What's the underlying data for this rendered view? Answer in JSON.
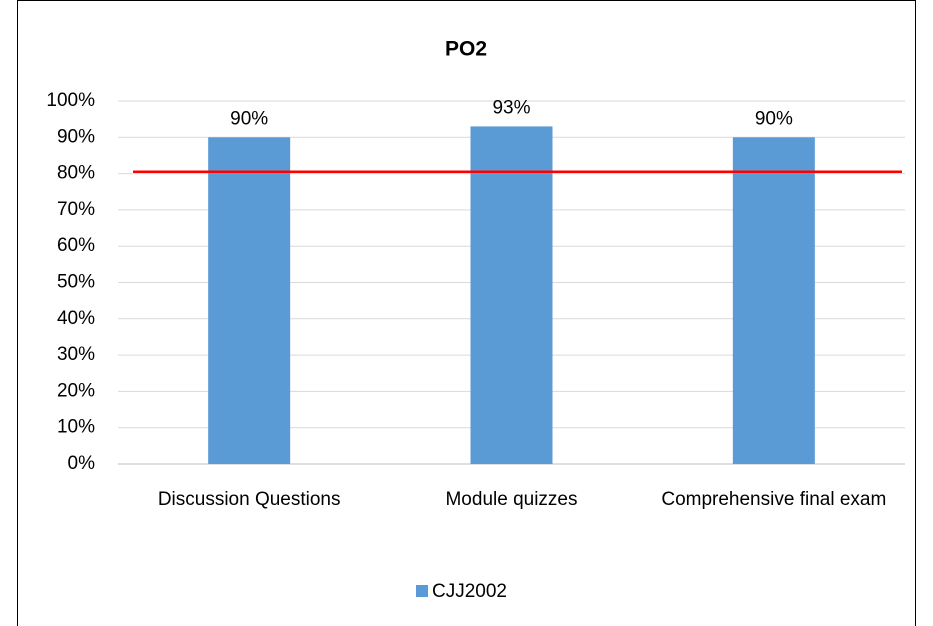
{
  "chart_data": {
    "type": "bar",
    "title": "PO2",
    "categories": [
      "Discussion Questions",
      "Module quizzes",
      "Comprehensive final exam"
    ],
    "series": [
      {
        "name": "CJJ2002",
        "color": "#5b9bd5",
        "values": [
          90,
          93,
          90
        ],
        "value_labels": [
          "90%",
          "93%",
          "90%"
        ]
      }
    ],
    "ylim": [
      0,
      100
    ],
    "yticks": [
      {
        "value": 0,
        "label": "0%"
      },
      {
        "value": 10,
        "label": "10%"
      },
      {
        "value": 20,
        "label": "20%"
      },
      {
        "value": 30,
        "label": "30%"
      },
      {
        "value": 40,
        "label": "40%"
      },
      {
        "value": 50,
        "label": "50%"
      },
      {
        "value": 60,
        "label": "60%"
      },
      {
        "value": 70,
        "label": "70%"
      },
      {
        "value": 80,
        "label": "80%"
      },
      {
        "value": 90,
        "label": "90%"
      },
      {
        "value": 100,
        "label": "100%"
      }
    ],
    "grid": true,
    "reference_line": {
      "value": 80.5,
      "color": "#ff0000"
    },
    "legend": "bottom"
  }
}
